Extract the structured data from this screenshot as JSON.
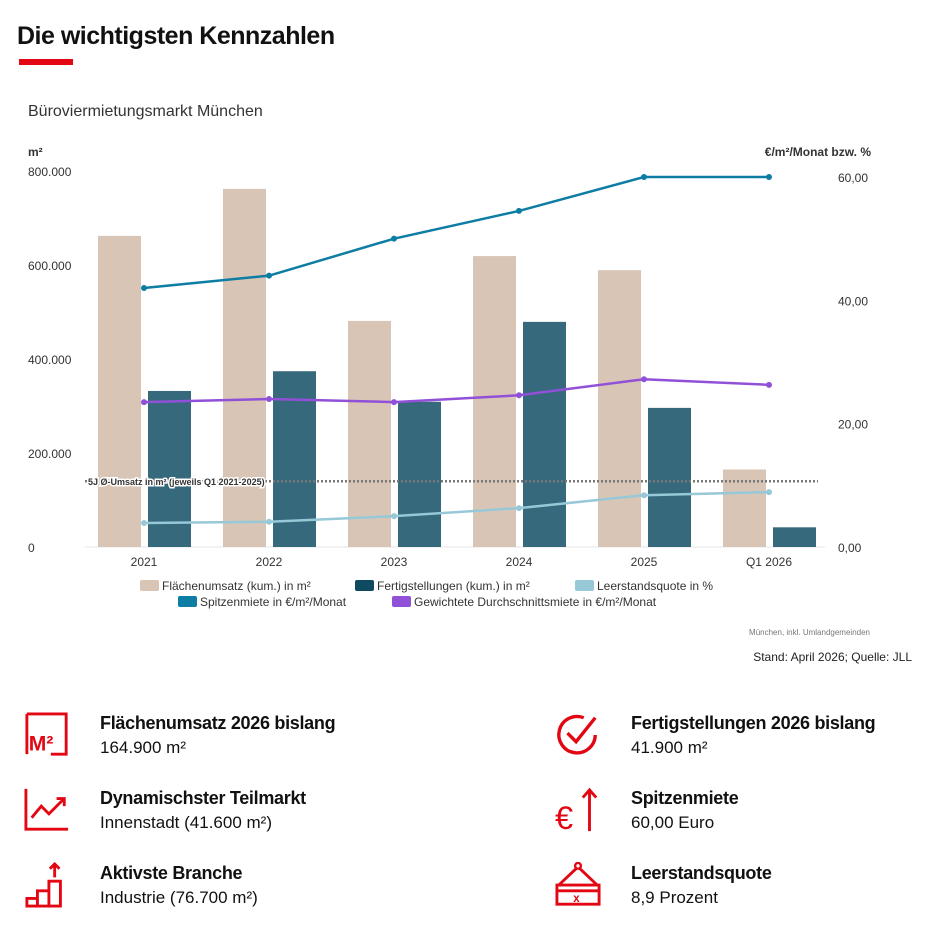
{
  "header": {
    "title": "Die wichtigsten Kennzahlen"
  },
  "chart_data": {
    "type": "bar",
    "title": "Büroviermietungsmarkt München",
    "ylabel_left": "m²",
    "ylabel_right": "€/m²/Monat bzw. %",
    "categories": [
      "2021",
      "2022",
      "2023",
      "2024",
      "2025",
      "Q1 2026"
    ],
    "ylim_left": [
      0,
      800000
    ],
    "ylim_right": [
      0,
      60
    ],
    "yticks_left": [
      "0",
      "200.000",
      "400.000",
      "600.000",
      "800.000"
    ],
    "yticks_right": [
      "0,00",
      "20,00",
      "40,00",
      "60,00"
    ],
    "bar_series": [
      {
        "name": "Flächenumsatz (kum.) in m²",
        "color": "#d9c5b5",
        "values": [
          662000,
          762000,
          481000,
          619000,
          589000,
          164900
        ]
      },
      {
        "name": "Fertigstellungen (kum.) in m²",
        "color": "#36697b",
        "legend_color": "#0e4a60",
        "values": [
          332000,
          374000,
          309000,
          479000,
          296000,
          41900
        ]
      }
    ],
    "line_series": [
      {
        "name": "Leerstandsquote in %",
        "color": "#96c8d8",
        "values": [
          3.9,
          4.1,
          5.0,
          6.3,
          8.4,
          8.9
        ]
      },
      {
        "name": "Spitzenmiete in €/m²/Monat",
        "color": "#0e7da3",
        "values": [
          42.0,
          44.0,
          50.0,
          54.5,
          60.0,
          60.0
        ]
      },
      {
        "name": "Gewichtete Durchschnittsmiete in €/m²/Monat",
        "color": "#9050d8",
        "values": [
          23.5,
          24.0,
          23.5,
          24.6,
          27.2,
          26.3
        ]
      }
    ],
    "reference_line": {
      "label": "5J Ø-Umsatz in m² (jeweils Q1 2021-2025)",
      "value": 140000
    },
    "legend_position": "bottom",
    "grid": false,
    "note": "München, inkl. Umlandgemeinden"
  },
  "source": "Stand: April 2026; Quelle: JLL",
  "accent": "#e30613",
  "kpis": [
    {
      "icon": "m2-icon",
      "title": "Flächenumsatz 2026 bislang",
      "value": "164.900 m²"
    },
    {
      "icon": "checkmark-icon",
      "title": "Fertigstellungen 2026 bislang",
      "value": "41.900 m²"
    },
    {
      "icon": "trend-chart-icon",
      "title": "Dynamischster Teilmarkt",
      "value": "Innenstadt (41.600 m²)"
    },
    {
      "icon": "euro-arrow-up-icon",
      "title": "Spitzenmiete",
      "value": "60,00 Euro"
    },
    {
      "icon": "growth-bars-icon",
      "title": "Aktivste Branche",
      "value": "Industrie (76.700 m²)"
    },
    {
      "icon": "vacancy-sign-icon",
      "title": "Leerstandsquote",
      "value": "8,9 Prozent"
    }
  ]
}
